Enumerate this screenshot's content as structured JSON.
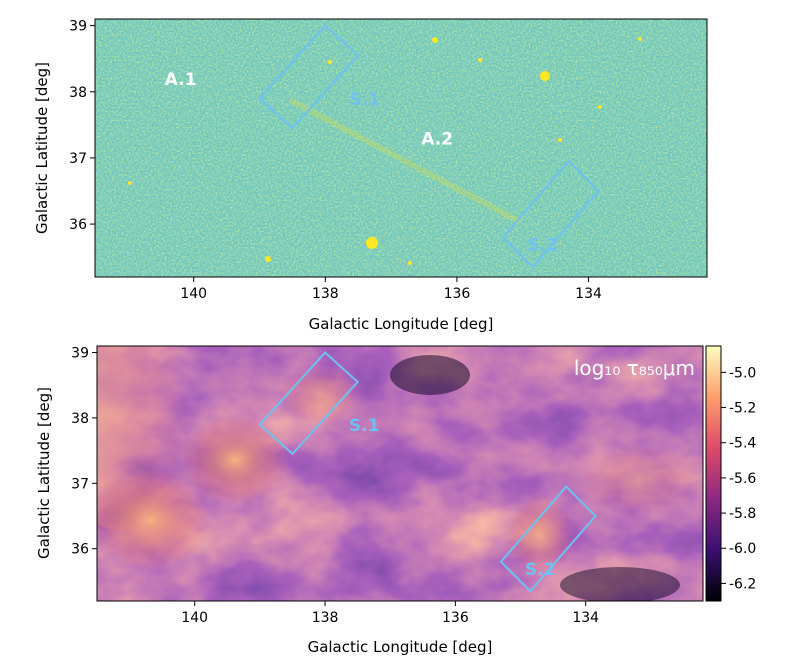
{
  "chart_data": [
    {
      "type": "heatmap",
      "panel": "top",
      "xlabel": "Galactic Longitude [deg]",
      "ylabel": "Galactic Latitude [deg]",
      "xlim": [
        141.5,
        132.2
      ],
      "ylim": [
        35.2,
        39.1
      ],
      "xticks": [
        140,
        138,
        136,
        134
      ],
      "yticks": [
        36,
        37,
        38,
        39
      ],
      "field_labels": [
        {
          "text": "A.1",
          "l": 140.2,
          "b": 38.1
        },
        {
          "text": "A.2",
          "l": 136.3,
          "b": 37.2
        }
      ],
      "regions": [
        {
          "text": "S.1",
          "label_l": 137.4,
          "label_b": 37.8,
          "corners": [
            [
              139.0,
              37.9
            ],
            [
              138.0,
              39.0
            ],
            [
              137.5,
              38.55
            ],
            [
              138.5,
              37.45
            ]
          ]
        },
        {
          "text": "S.2",
          "label_l": 134.7,
          "label_b": 35.6,
          "corners": [
            [
              135.3,
              35.8
            ],
            [
              134.3,
              36.95
            ],
            [
              133.85,
              36.5
            ],
            [
              134.85,
              35.35
            ]
          ]
        }
      ],
      "colors": {
        "background": "#440154",
        "map_low": "#2a7f8e",
        "map_high": "#fde725",
        "label": "#ffffff",
        "region": "#6ec1f0"
      }
    },
    {
      "type": "heatmap",
      "panel": "bottom",
      "xlabel": "Galactic Longitude [deg]",
      "ylabel": "Galactic Latitude [deg]",
      "xlim": [
        141.5,
        132.2
      ],
      "ylim": [
        35.2,
        39.1
      ],
      "xticks": [
        140,
        138,
        136,
        134
      ],
      "yticks": [
        36,
        37,
        38,
        39
      ],
      "annotation": "log₁₀ τ₈₅₀μm",
      "colorbar": {
        "min": -6.3,
        "max": -4.85,
        "ticks": [
          "-5.0",
          "-5.2",
          "-5.4",
          "-5.6",
          "-5.8",
          "-6.0",
          "-6.2"
        ],
        "tick_values": [
          -5.0,
          -5.2,
          -5.4,
          -5.6,
          -5.8,
          -6.0,
          -6.2
        ]
      },
      "regions": [
        {
          "text": "S.1",
          "label_l": 137.4,
          "label_b": 37.8,
          "corners": [
            [
              139.0,
              37.9
            ],
            [
              138.0,
              39.0
            ],
            [
              137.5,
              38.55
            ],
            [
              138.5,
              37.45
            ]
          ]
        },
        {
          "text": "S.2",
          "label_l": 134.7,
          "label_b": 35.6,
          "corners": [
            [
              135.3,
              35.8
            ],
            [
              134.3,
              36.95
            ],
            [
              133.85,
              36.5
            ],
            [
              134.85,
              35.35
            ]
          ]
        }
      ],
      "colors": {
        "colormap": [
          "#000004",
          "#3b0f70",
          "#8c2981",
          "#de4968",
          "#fe9f6d",
          "#fcfdbf"
        ],
        "region": "#6ec1f0"
      }
    }
  ]
}
